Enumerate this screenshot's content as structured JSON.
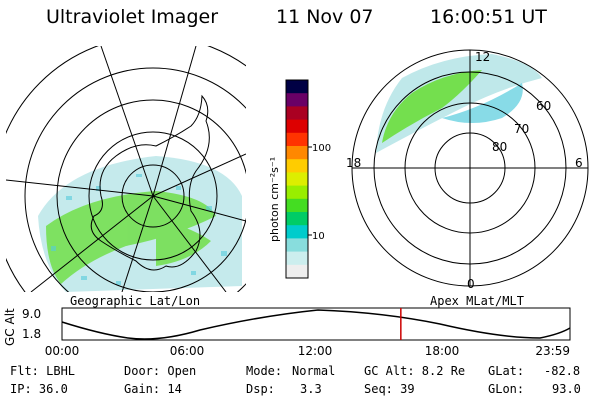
{
  "header": {
    "title": "Ultraviolet Imager",
    "date": "11 Nov 07",
    "time": "16:00:51 UT"
  },
  "left_panel": {
    "caption": "Geographic Lat/Lon"
  },
  "right_panel": {
    "caption": "Apex MLat/MLT",
    "mlt_labels": {
      "top": "12",
      "left": "18",
      "right": "6",
      "bottom": "0"
    },
    "lat_labels": [
      "60",
      "70",
      "80"
    ]
  },
  "colorbar": {
    "unit_label": "photon cm⁻²s⁻¹",
    "tick_labels": [
      "100",
      "10"
    ],
    "colors": [
      "#000044",
      "#6a0066",
      "#aa0022",
      "#dd0000",
      "#ff3300",
      "#ff8800",
      "#ffcc00",
      "#ddee00",
      "#99ee00",
      "#44dd22",
      "#00cc66",
      "#00cccc",
      "#88dddd",
      "#cceeee",
      "#eeeeee"
    ]
  },
  "timeline": {
    "ylabel": "GC Alt",
    "ytick_top": "9.0",
    "ytick_bottom": "1.8",
    "xticks": [
      "00:00",
      "06:00",
      "12:00",
      "18:00",
      "23:59"
    ],
    "current_time_fraction": 0.667,
    "line_color": "#cc0000"
  },
  "footer": {
    "col1": {
      "filter": "Flt: LBHL",
      "ip": "IP: 36.0"
    },
    "col2": {
      "door": "Door: Open",
      "gain": "Gain: 14"
    },
    "col3": {
      "mode_label": "Mode:",
      "mode_value": "Normal",
      "dsp_label": "Dsp:",
      "dsp_value": "3.3"
    },
    "col4": {
      "gc_alt": "GC Alt: 8.2 Re",
      "seq": "Seq: 39"
    },
    "col5": {
      "glat_label": "GLat:",
      "glat_value": "-82.8",
      "glon_label": "GLon:",
      "glon_value": "93.0"
    }
  }
}
